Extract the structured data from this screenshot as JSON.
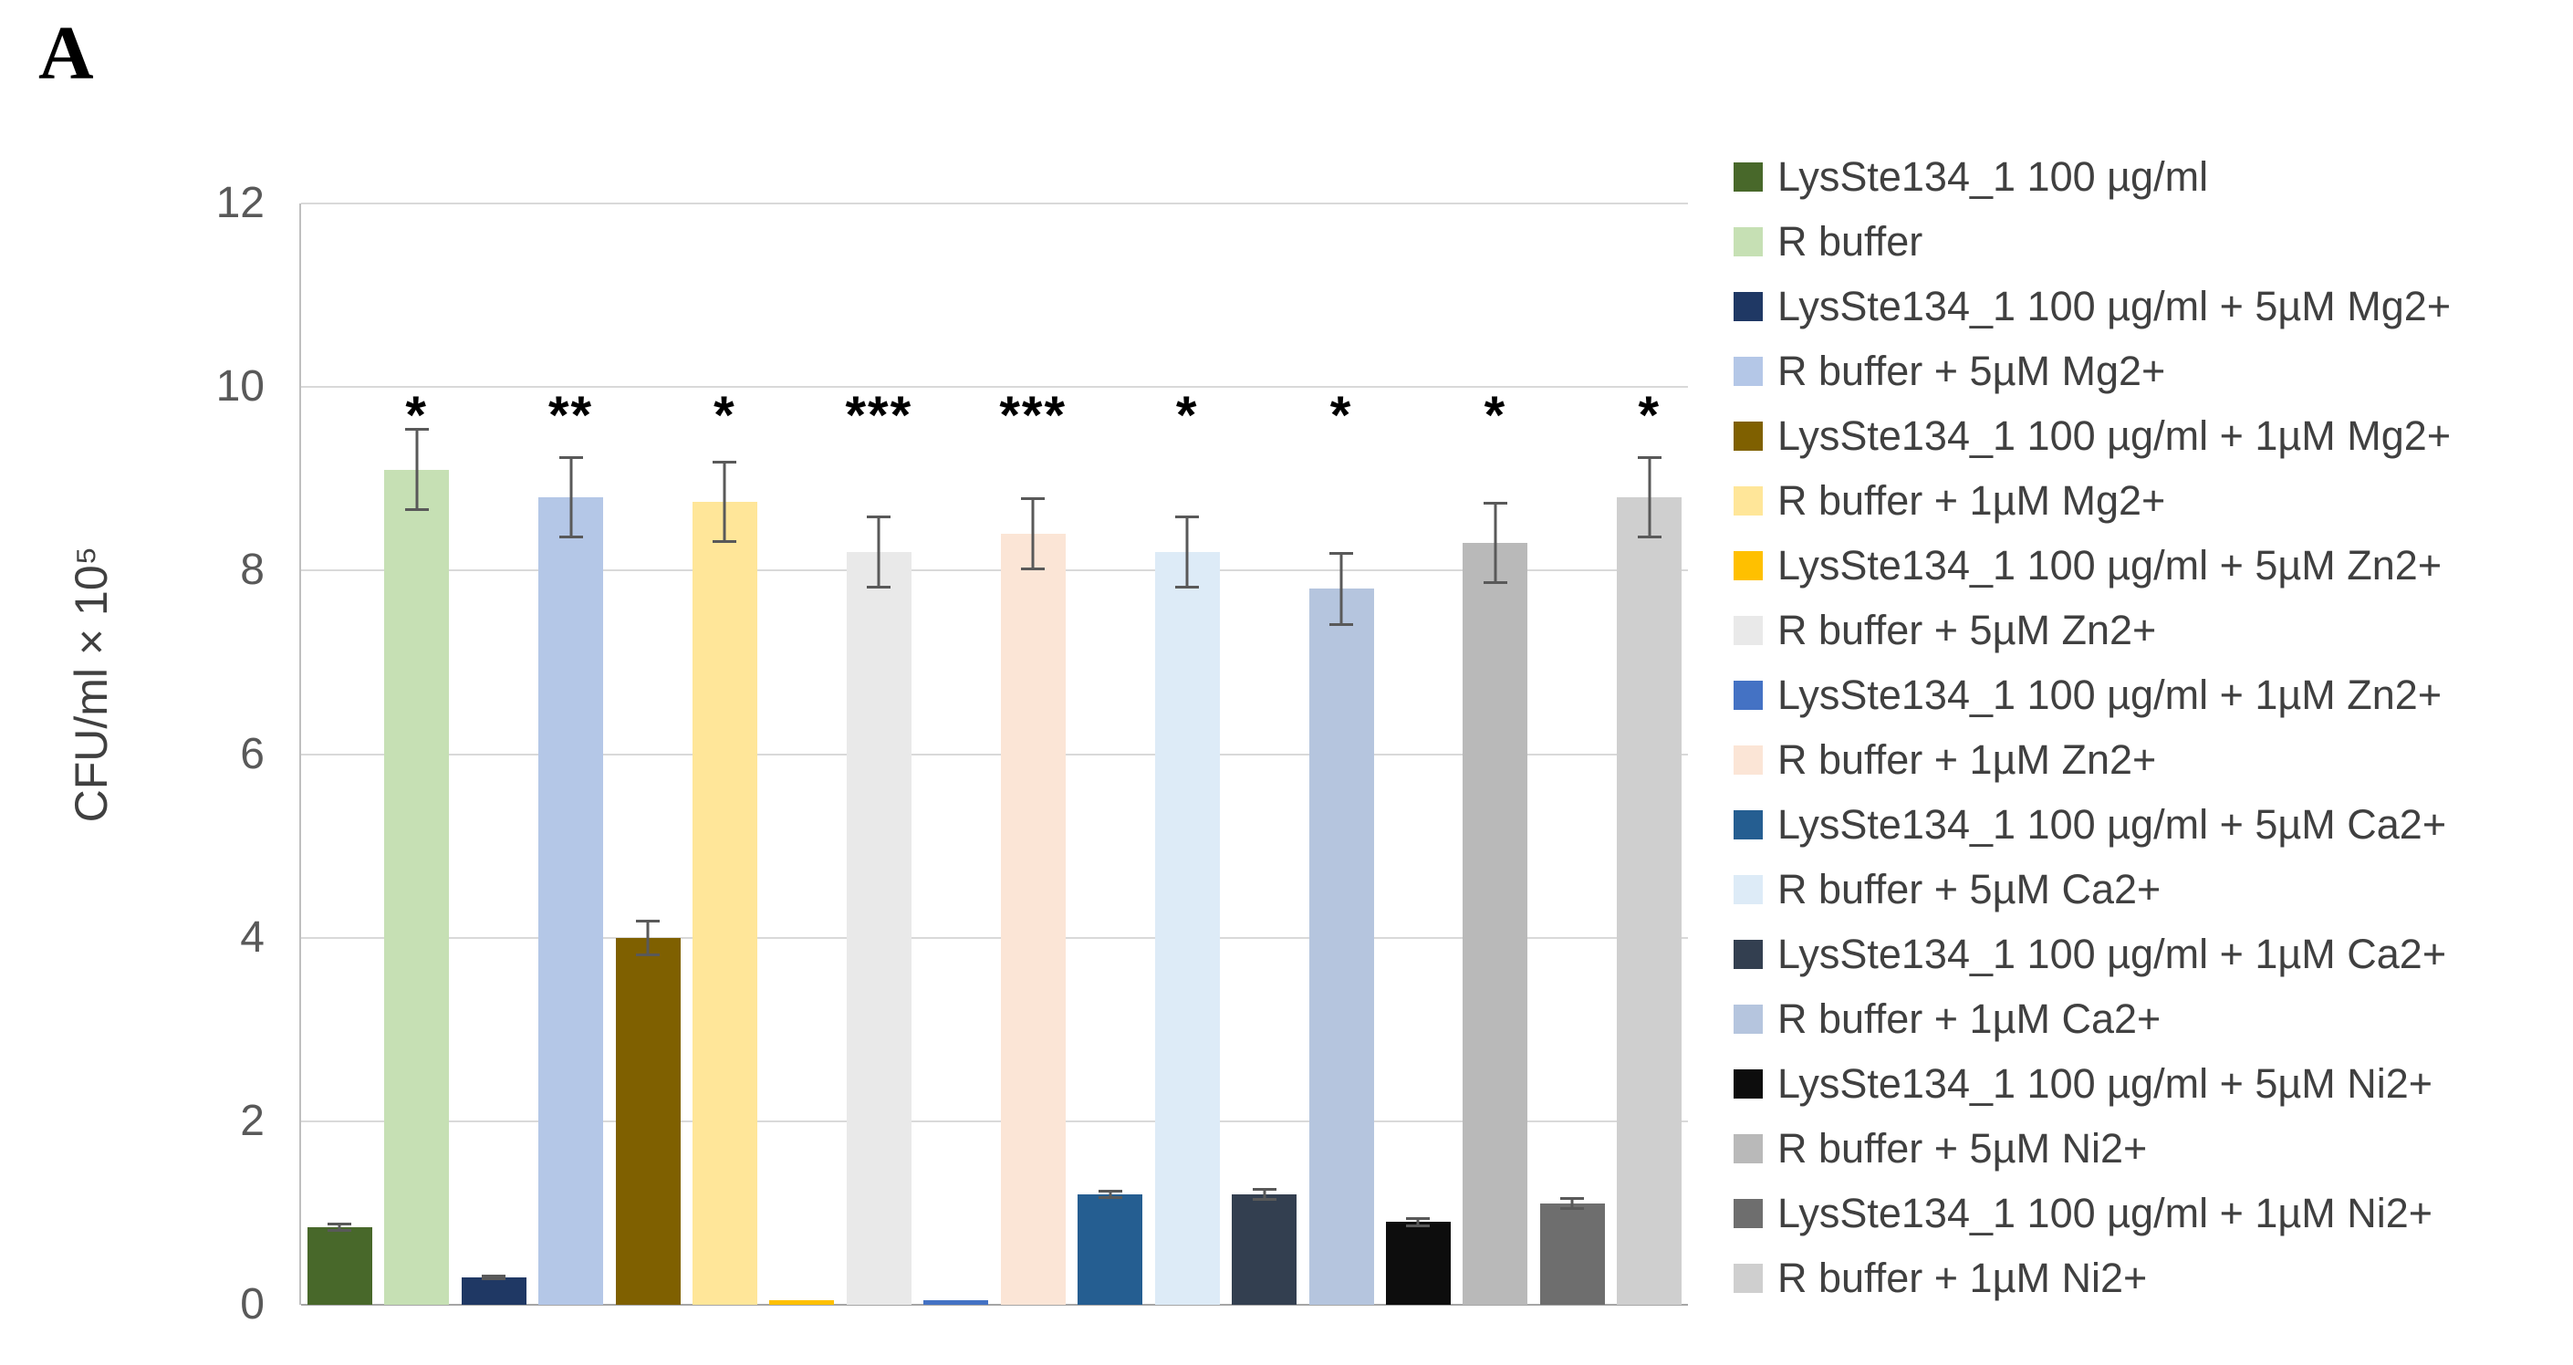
{
  "panel_label": "A",
  "chart_data": {
    "type": "bar",
    "title": "",
    "xlabel": "",
    "ylabel": "CFU/ml × 10⁵",
    "ylim": [
      0,
      12
    ],
    "yticks": [
      0,
      2,
      4,
      6,
      8,
      10,
      12
    ],
    "grid": true,
    "legend_position": "right",
    "annotation_row_value": 9.4,
    "series": [
      {
        "label": "LysSte134_1 100 µg/ml",
        "color": "#48682a",
        "value": 0.85,
        "error": 0.05,
        "annotation": ""
      },
      {
        "label": "R buffer",
        "color": "#c6e0b4",
        "value": 9.1,
        "error": 0.45,
        "annotation": "*"
      },
      {
        "label": "LysSte134_1 100 µg/ml + 5µM Mg2+",
        "color": "#1f3864",
        "value": 0.3,
        "error": 0.03,
        "annotation": ""
      },
      {
        "label": "R buffer + 5µM Mg2+",
        "color": "#b4c7e7",
        "value": 8.8,
        "error": 0.45,
        "annotation": "**"
      },
      {
        "label": "LysSte134_1 100 µg/ml + 1µM Mg2+",
        "color": "#7f6000",
        "value": 4.0,
        "error": 0.2,
        "annotation": ""
      },
      {
        "label": "R buffer + 1µM Mg2+",
        "color": "#ffe699",
        "value": 8.75,
        "error": 0.45,
        "annotation": "*"
      },
      {
        "label": "LysSte134_1 100 µg/ml + 5µM Zn2+",
        "color": "#ffc000",
        "value": 0.05,
        "error": 0,
        "annotation": ""
      },
      {
        "label": "R buffer + 5µM Zn2+",
        "color": "#e9e9e9",
        "value": 8.2,
        "error": 0.4,
        "annotation": "***"
      },
      {
        "label": "LysSte134_1 100 µg/ml + 1µM Zn2+",
        "color": "#4472c4",
        "value": 0.05,
        "error": 0,
        "annotation": ""
      },
      {
        "label": "R buffer + 1µM Zn2+",
        "color": "#fbe5d6",
        "value": 8.4,
        "error": 0.4,
        "annotation": "***"
      },
      {
        "label": "LysSte134_1 100 µg/ml + 5µM Ca2+",
        "color": "#255e91",
        "value": 1.2,
        "error": 0.05,
        "annotation": ""
      },
      {
        "label": "R buffer + 5µM Ca2+",
        "color": "#ddebf7",
        "value": 8.2,
        "error": 0.4,
        "annotation": "*"
      },
      {
        "label": "LysSte134_1 100 µg/ml + 1µM Ca2+",
        "color": "#333f50",
        "value": 1.2,
        "error": 0.07,
        "annotation": ""
      },
      {
        "label": "R buffer + 1µM Ca2+",
        "color": "#b5c5de",
        "value": 7.8,
        "error": 0.4,
        "annotation": "*"
      },
      {
        "label": "LysSte134_1 100 µg/ml + 5µM Ni2+",
        "color": "#0d0d0d",
        "value": 0.9,
        "error": 0.05,
        "annotation": ""
      },
      {
        "label": "R buffer + 5µM Ni2+",
        "color": "#b9b9b9",
        "value": 8.3,
        "error": 0.45,
        "annotation": "*"
      },
      {
        "label": "LysSte134_1 100 µg/ml + 1µM Ni2+",
        "color": "#6e6e6e",
        "value": 1.1,
        "error": 0.07,
        "annotation": ""
      },
      {
        "label": "R buffer + 1µM Ni2+",
        "color": "#cfcfcf",
        "value": 8.8,
        "error": 0.45,
        "annotation": "*"
      }
    ]
  }
}
